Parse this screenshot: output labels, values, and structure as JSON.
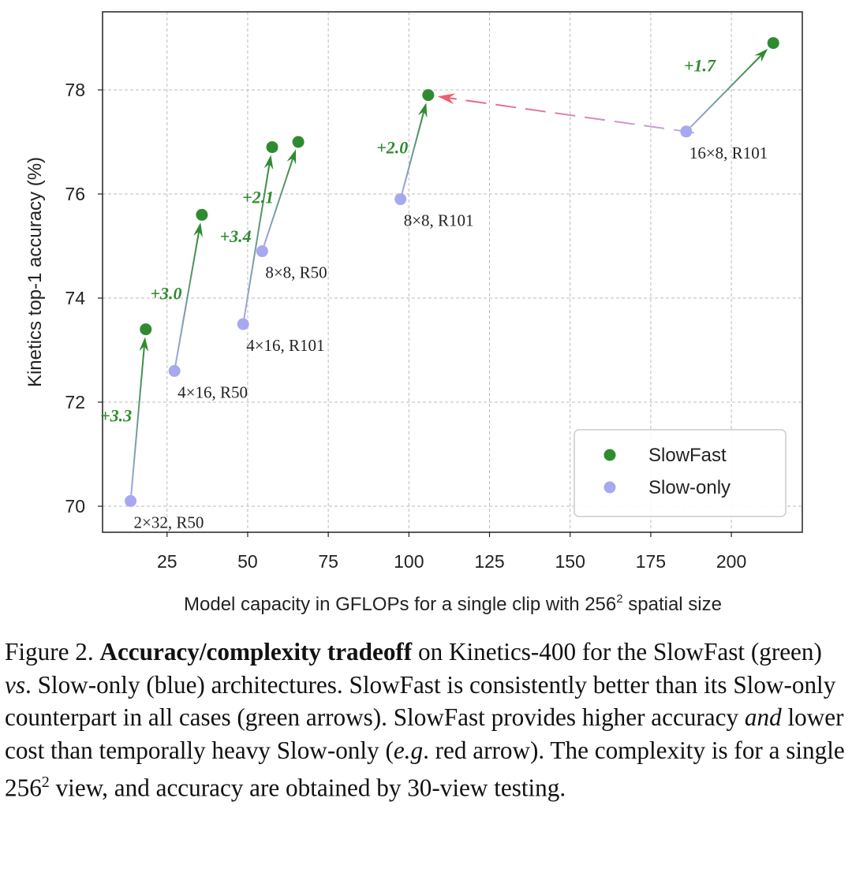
{
  "chart_data": {
    "type": "scatter",
    "title": "",
    "xlabel_pre": "Model capacity in GFLOPs for a single clip with 256",
    "xlabel_sup": "2",
    "xlabel_post": " spatial size",
    "ylabel": "Kinetics top-1 accuracy (%)",
    "xlim": [
      5,
      222
    ],
    "ylim": [
      69.5,
      79.5
    ],
    "xticks": [
      25,
      50,
      75,
      100,
      125,
      150,
      175,
      200
    ],
    "yticks": [
      70,
      72,
      74,
      76,
      78
    ],
    "grid": true,
    "legend_position": "lower-right",
    "series": [
      {
        "name": "SlowFast",
        "color": "#2e8b2e",
        "points": [
          {
            "x": 18.4,
            "y": 73.4
          },
          {
            "x": 35.8,
            "y": 75.6
          },
          {
            "x": 57.6,
            "y": 76.9
          },
          {
            "x": 65.7,
            "y": 77.0
          },
          {
            "x": 106,
            "y": 77.9
          },
          {
            "x": 213,
            "y": 78.9
          }
        ]
      },
      {
        "name": "Slow-only",
        "color": "#a7a8f0",
        "points": [
          {
            "x": 13.7,
            "y": 70.1,
            "label": "2×32, R50"
          },
          {
            "x": 27.3,
            "y": 72.6,
            "label": "4×16, R50"
          },
          {
            "x": 48.6,
            "y": 73.5,
            "label": "4×16, R101"
          },
          {
            "x": 54.5,
            "y": 74.9,
            "label": "8×8, R50"
          },
          {
            "x": 97.4,
            "y": 75.9,
            "label": "8×8, R101"
          },
          {
            "x": 186,
            "y": 77.2,
            "label": "16×8, R101"
          }
        ]
      }
    ],
    "gains": [
      {
        "from": [
          13.7,
          70.1
        ],
        "to": [
          18.4,
          73.4
        ],
        "text": "+3.3"
      },
      {
        "from": [
          27.3,
          72.6
        ],
        "to": [
          35.8,
          75.6
        ],
        "text": "+3.0"
      },
      {
        "from": [
          48.6,
          73.5
        ],
        "to": [
          57.6,
          76.9
        ],
        "text": "+3.4"
      },
      {
        "from": [
          54.5,
          74.9
        ],
        "to": [
          65.7,
          77.0
        ],
        "text": "+2.1"
      },
      {
        "from": [
          97.4,
          75.9
        ],
        "to": [
          106,
          77.9
        ],
        "text": "+2.0"
      },
      {
        "from": [
          186,
          77.2
        ],
        "to": [
          213,
          78.9
        ],
        "text": "+1.7"
      }
    ],
    "red_arrow": {
      "from": [
        186,
        77.2
      ],
      "to": [
        106,
        77.9
      ]
    }
  },
  "caption": {
    "fig_num": "Figure 2. ",
    "bold": "Accuracy/complexity tradeoff",
    "t1": " on Kinetics-400 for the SlowFast (green) ",
    "vs": "vs",
    "t2": ". Slow-only (blue) architectures. SlowFast is consistently better than its Slow-only counterpart in all cases (green arrows). SlowFast provides higher accuracy ",
    "and": "and",
    "t3": " lower cost than temporally heavy Slow-only (",
    "eg": "e.g",
    "t4": ". red arrow). The complexity is for a single 256",
    "sup": "2",
    "t5": " view, and accuracy are obtained by 30-view testing."
  }
}
